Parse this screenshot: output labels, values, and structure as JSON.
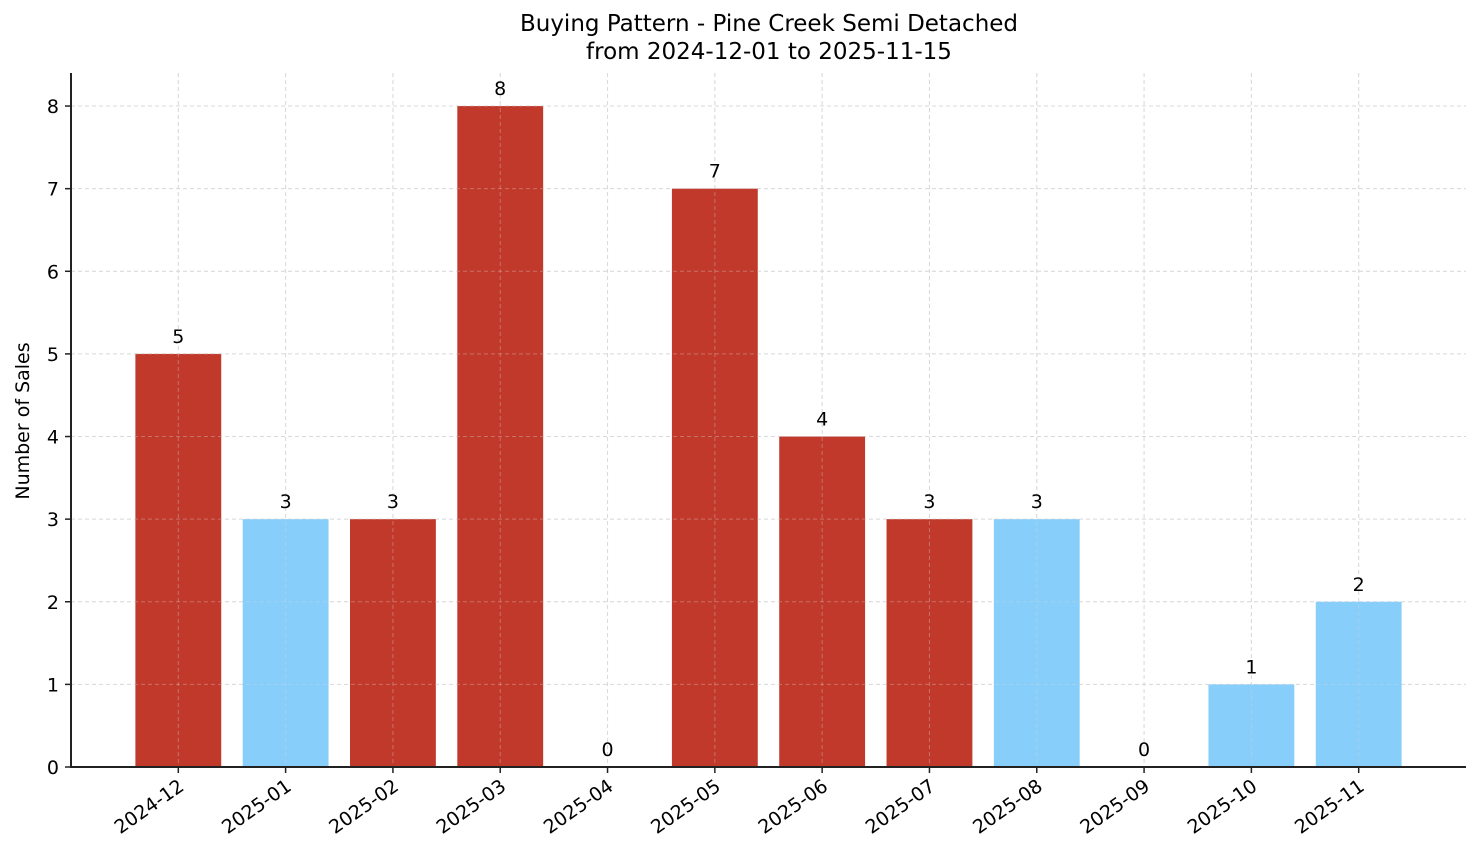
{
  "chart": {
    "title_line1": "Buying Pattern - Pine Creek Semi Detached",
    "title_line2": "from 2024-12-01 to 2025-11-15",
    "ylabel": "Number of Sales"
  },
  "colors": {
    "high": "#C0392B",
    "low": "#87CEFA",
    "grid": "#d9d9d9",
    "axis": "#222222"
  },
  "chart_data": {
    "type": "bar",
    "title": "Buying Pattern - Pine Creek Semi Detached\nfrom 2024-12-01 to 2025-11-15",
    "xlabel": "",
    "ylabel": "Number of Sales",
    "categories": [
      "2024-12",
      "2025-01",
      "2025-02",
      "2025-03",
      "2025-04",
      "2025-05",
      "2025-06",
      "2025-07",
      "2025-08",
      "2025-09",
      "2025-10",
      "2025-11"
    ],
    "values": [
      5,
      3,
      3,
      8,
      0,
      7,
      4,
      3,
      3,
      0,
      1,
      2
    ],
    "bar_colors": [
      "#C0392B",
      "#87CEFA",
      "#C0392B",
      "#C0392B",
      "#C0392B",
      "#C0392B",
      "#C0392B",
      "#C0392B",
      "#87CEFA",
      "#87CEFA",
      "#87CEFA",
      "#87CEFA"
    ],
    "data_labels": [
      "5",
      "3",
      "3",
      "8",
      "0",
      "7",
      "4",
      "3",
      "3",
      "0",
      "1",
      "2"
    ],
    "yticks": [
      0,
      1,
      2,
      3,
      4,
      5,
      6,
      7,
      8
    ],
    "ylim": [
      0,
      8.4
    ],
    "xlim": [
      -1,
      12
    ],
    "grid": true,
    "grid_style": "dashed",
    "legend": null,
    "xtick_rotation": 35
  }
}
